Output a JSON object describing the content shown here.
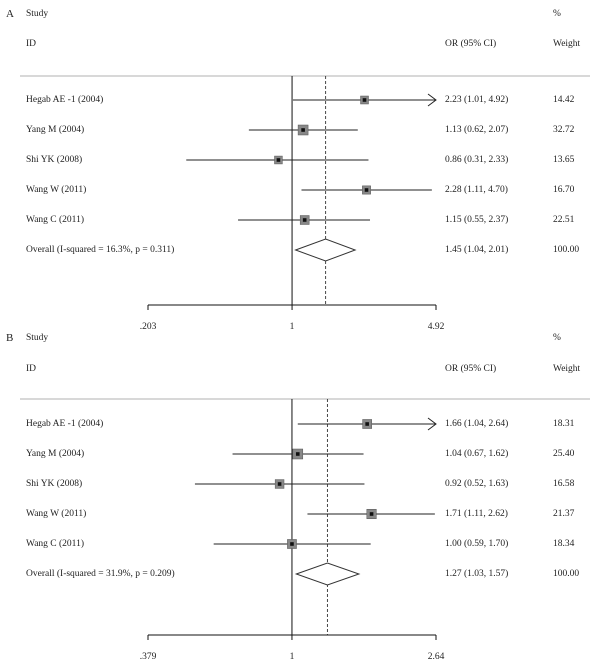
{
  "chart_data": [
    {
      "type": "forest",
      "panel_label": "A",
      "header": {
        "study": "Study",
        "id": "ID",
        "effect": "OR (95% CI)",
        "pct": "%",
        "weight": "Weight"
      },
      "reference_value": 1,
      "xscale": "log",
      "xlim": [
        0.203,
        4.92
      ],
      "xticks": [
        {
          "value": 0.203,
          "label": ".203"
        },
        {
          "value": 1,
          "label": "1"
        },
        {
          "value": 4.92,
          "label": "4.92"
        }
      ],
      "studies": [
        {
          "name": "Hegab AE -1 (2004)",
          "or": 2.23,
          "lo": 1.01,
          "hi": 4.92,
          "label": "2.23 (1.01, 4.92)",
          "weight": "14.42",
          "w": 14.42,
          "arrow": true
        },
        {
          "name": "Yang M (2004)",
          "or": 1.13,
          "lo": 0.62,
          "hi": 2.07,
          "label": "1.13 (0.62, 2.07)",
          "weight": "32.72",
          "w": 32.72
        },
        {
          "name": "Shi YK (2008)",
          "or": 0.86,
          "lo": 0.31,
          "hi": 2.33,
          "label": "0.86 (0.31, 2.33)",
          "weight": "13.65",
          "w": 13.65
        },
        {
          "name": "Wang W (2011)",
          "or": 2.28,
          "lo": 1.11,
          "hi": 4.7,
          "label": "2.28 (1.11, 4.70)",
          "weight": "16.70",
          "w": 16.7
        },
        {
          "name": "Wang C (2011)",
          "or": 1.15,
          "lo": 0.55,
          "hi": 2.37,
          "label": "1.15 (0.55, 2.37)",
          "weight": "22.51",
          "w": 22.51
        }
      ],
      "overall": {
        "name": "Overall  (I-squared = 16.3%, p = 0.311)",
        "or": 1.45,
        "lo": 1.04,
        "hi": 2.01,
        "label": "1.45 (1.04, 2.01)",
        "weight": "100.00"
      }
    },
    {
      "type": "forest",
      "panel_label": "B",
      "header": {
        "study": "Study",
        "id": "ID",
        "effect": "OR (95% CI)",
        "pct": "%",
        "weight": "Weight"
      },
      "reference_value": 1,
      "xscale": "log",
      "xlim": [
        0.379,
        2.64
      ],
      "xticks": [
        {
          "value": 0.379,
          "label": ".379"
        },
        {
          "value": 1,
          "label": "1"
        },
        {
          "value": 2.64,
          "label": "2.64"
        }
      ],
      "studies": [
        {
          "name": "Hegab AE -1 (2004)",
          "or": 1.66,
          "lo": 1.04,
          "hi": 2.64,
          "label": "1.66 (1.04, 2.64)",
          "weight": "18.31",
          "w": 18.31,
          "arrow": true
        },
        {
          "name": "Yang M (2004)",
          "or": 1.04,
          "lo": 0.67,
          "hi": 1.62,
          "label": "1.04 (0.67, 1.62)",
          "weight": "25.40",
          "w": 25.4
        },
        {
          "name": "Shi YK (2008)",
          "or": 0.92,
          "lo": 0.52,
          "hi": 1.63,
          "label": "0.92 (0.52, 1.63)",
          "weight": "16.58",
          "w": 16.58
        },
        {
          "name": "Wang W (2011)",
          "or": 1.71,
          "lo": 1.11,
          "hi": 2.62,
          "label": "1.71 (1.11, 2.62)",
          "weight": "21.37",
          "w": 21.37
        },
        {
          "name": "Wang C (2011)",
          "or": 1.0,
          "lo": 0.59,
          "hi": 1.7,
          "label": "1.00 (0.59, 1.70)",
          "weight": "18.34",
          "w": 18.34
        }
      ],
      "overall": {
        "name": "Overall  (I-squared = 31.9%, p = 0.209)",
        "or": 1.27,
        "lo": 1.03,
        "hi": 1.57,
        "label": "1.27 (1.03, 1.57)",
        "weight": "100.00"
      }
    }
  ]
}
